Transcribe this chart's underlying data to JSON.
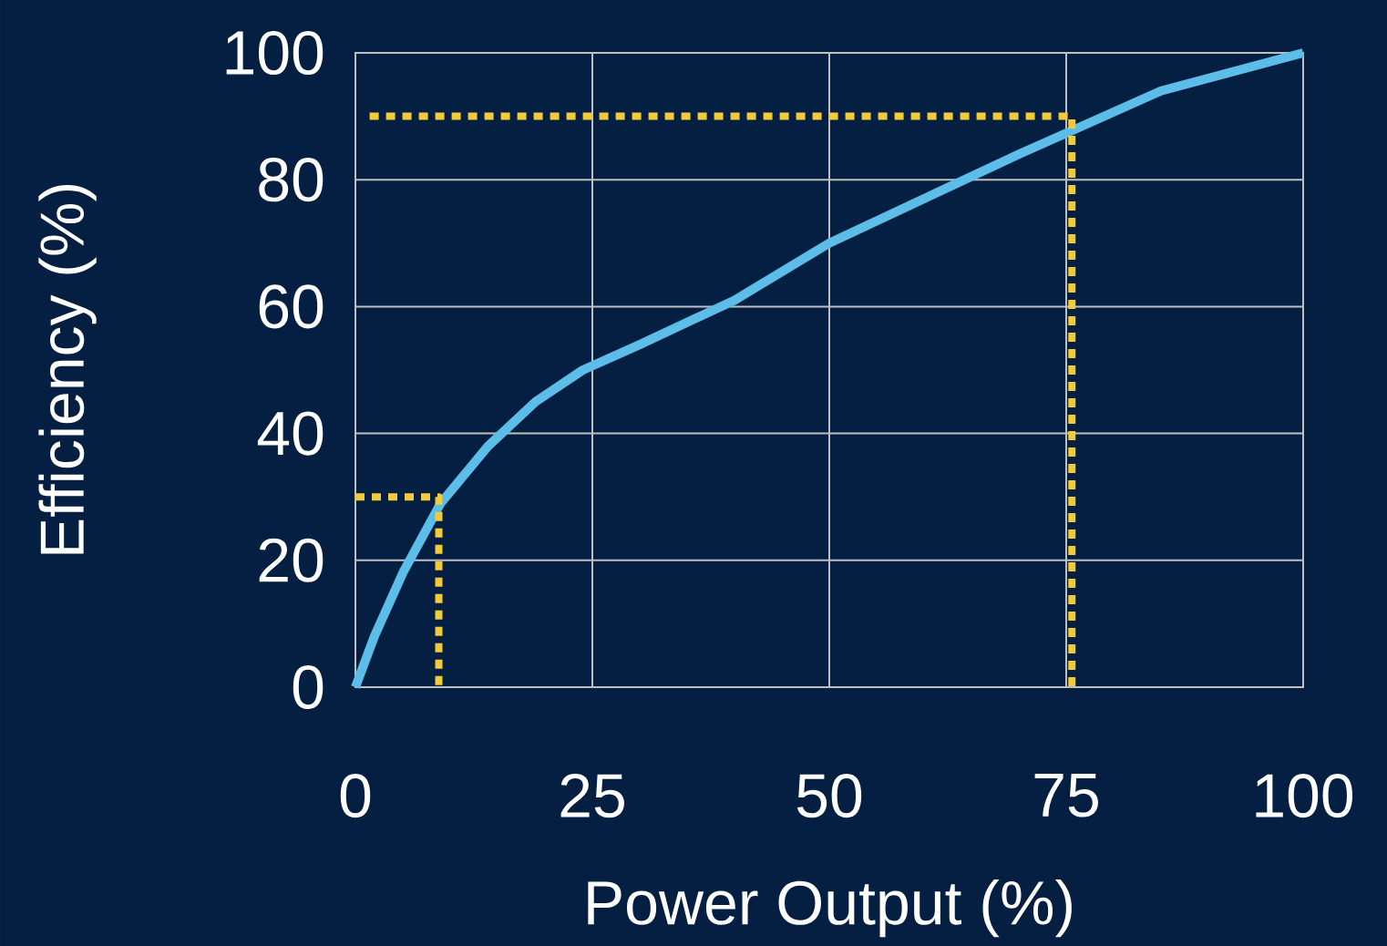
{
  "chart_data": {
    "type": "line",
    "xlabel": "Power Output (%)",
    "ylabel": "Efficiency (%)",
    "xlim": [
      0,
      100
    ],
    "ylim": [
      0,
      100
    ],
    "xticks": [
      0,
      25,
      50,
      75,
      100
    ],
    "yticks": [
      0,
      20,
      40,
      60,
      80,
      100
    ],
    "grid": true,
    "marker": "none",
    "series": [
      {
        "color": "#5bbde8",
        "line_style": "solid",
        "x": [
          0,
          2,
          5,
          9,
          14,
          19,
          24,
          30,
          40,
          50,
          60,
          70,
          76,
          85,
          100
        ],
        "values": [
          0,
          8,
          18,
          29,
          38,
          45,
          50,
          54,
          61,
          70,
          77,
          84,
          88,
          94,
          100
        ]
      },
      {
        "color": "#f2cb3c",
        "line_style": "dotted",
        "x": [
          1.5,
          75.6,
          75.6
        ],
        "values": [
          90,
          90,
          0
        ]
      },
      {
        "color": "#f2cb3c",
        "line_style": "dotted",
        "x": [
          0,
          8.8,
          8.8
        ],
        "values": [
          30,
          30,
          0
        ]
      }
    ]
  }
}
